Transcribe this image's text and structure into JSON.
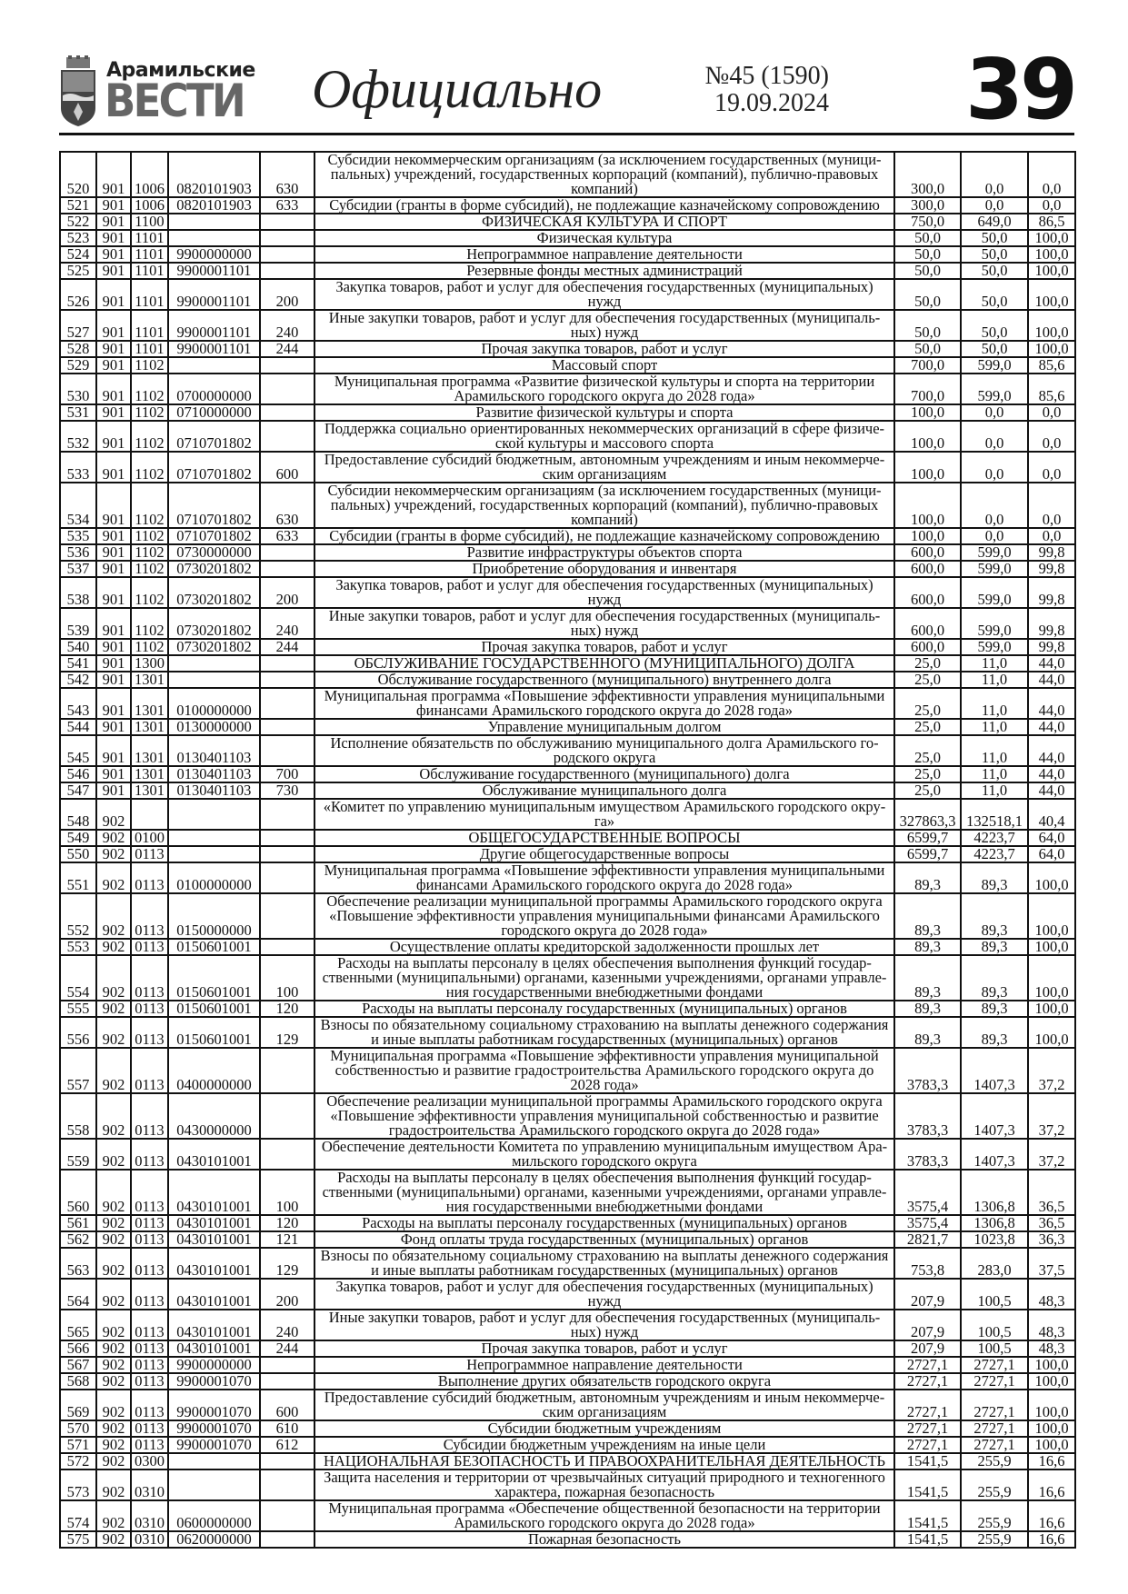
{
  "header": {
    "logo_top": "Арамильские",
    "logo_bottom": "ВЕСТИ",
    "section": "Официально",
    "issue": "№45 (1590)",
    "date": "19.09.2024",
    "page_number": "39"
  },
  "table": {
    "rows": [
      [
        "520",
        "901",
        "1006",
        "0820101903",
        "630",
        "Субсидии некоммерческим организациям (за исключением государственных (муници-\nпальных) учреждений, государственных корпораций (компаний), публично-правовых\nкомпаний)",
        "300,0",
        "0,0",
        "0,0"
      ],
      [
        "521",
        "901",
        "1006",
        "0820101903",
        "633",
        "Субсидии (гранты в форме субсидий), не подлежащие казначейскому сопровождению",
        "300,0",
        "0,0",
        "0,0"
      ],
      [
        "522",
        "901",
        "1100",
        "",
        "",
        "ФИЗИЧЕСКАЯ КУЛЬТУРА И СПОРТ",
        "750,0",
        "649,0",
        "86,5"
      ],
      [
        "523",
        "901",
        "1101",
        "",
        "",
        "Физическая культура",
        "50,0",
        "50,0",
        "100,0"
      ],
      [
        "524",
        "901",
        "1101",
        "9900000000",
        "",
        "Непрограммное направление деятельности",
        "50,0",
        "50,0",
        "100,0"
      ],
      [
        "525",
        "901",
        "1101",
        "9900001101",
        "",
        "Резервные фонды местных администраций",
        "50,0",
        "50,0",
        "100,0"
      ],
      [
        "526",
        "901",
        "1101",
        "9900001101",
        "200",
        "Закупка товаров, работ и услуг для обеспечения государственных (муниципальных)\nнужд",
        "50,0",
        "50,0",
        "100,0"
      ],
      [
        "527",
        "901",
        "1101",
        "9900001101",
        "240",
        "Иные закупки товаров, работ и услуг для обеспечения государственных (муниципаль-\nных) нужд",
        "50,0",
        "50,0",
        "100,0"
      ],
      [
        "528",
        "901",
        "1101",
        "9900001101",
        "244",
        "Прочая закупка товаров, работ и услуг",
        "50,0",
        "50,0",
        "100,0"
      ],
      [
        "529",
        "901",
        "1102",
        "",
        "",
        "Массовый спорт",
        "700,0",
        "599,0",
        "85,6"
      ],
      [
        "530",
        "901",
        "1102",
        "0700000000",
        "",
        "Муниципальная программа «Развитие физической культуры и спорта на территории\nАрамильского городского округа до 2028 года»",
        "700,0",
        "599,0",
        "85,6"
      ],
      [
        "531",
        "901",
        "1102",
        "0710000000",
        "",
        "Развитие физической культуры и спорта",
        "100,0",
        "0,0",
        "0,0"
      ],
      [
        "532",
        "901",
        "1102",
        "0710701802",
        "",
        "Поддержка социально ориентированных некоммерческих организаций в сфере физиче-\nской культуры и массового спорта",
        "100,0",
        "0,0",
        "0,0"
      ],
      [
        "533",
        "901",
        "1102",
        "0710701802",
        "600",
        "Предоставление субсидий бюджетным, автономным учреждениям и иным некоммерче-\nским организациям",
        "100,0",
        "0,0",
        "0,0"
      ],
      [
        "534",
        "901",
        "1102",
        "0710701802",
        "630",
        "Субсидии некоммерческим организациям (за исключением государственных (муници-\nпальных) учреждений, государственных корпораций (компаний), публично-правовых\nкомпаний)",
        "100,0",
        "0,0",
        "0,0"
      ],
      [
        "535",
        "901",
        "1102",
        "0710701802",
        "633",
        "Субсидии (гранты в форме субсидий), не подлежащие казначейскому сопровождению",
        "100,0",
        "0,0",
        "0,0"
      ],
      [
        "536",
        "901",
        "1102",
        "0730000000",
        "",
        "Развитие инфраструктуры объектов спорта",
        "600,0",
        "599,0",
        "99,8"
      ],
      [
        "537",
        "901",
        "1102",
        "0730201802",
        "",
        "Приобретение оборудования и инвентаря",
        "600,0",
        "599,0",
        "99,8"
      ],
      [
        "538",
        "901",
        "1102",
        "0730201802",
        "200",
        "Закупка товаров, работ и услуг для обеспечения государственных (муниципальных)\nнужд",
        "600,0",
        "599,0",
        "99,8"
      ],
      [
        "539",
        "901",
        "1102",
        "0730201802",
        "240",
        "Иные закупки товаров, работ и услуг для обеспечения государственных (муниципаль-\nных) нужд",
        "600,0",
        "599,0",
        "99,8"
      ],
      [
        "540",
        "901",
        "1102",
        "0730201802",
        "244",
        "Прочая закупка товаров, работ и услуг",
        "600,0",
        "599,0",
        "99,8"
      ],
      [
        "541",
        "901",
        "1300",
        "",
        "",
        "ОБСЛУЖИВАНИЕ ГОСУДАРСТВЕННОГО (МУНИЦИПАЛЬНОГО) ДОЛГА",
        "25,0",
        "11,0",
        "44,0"
      ],
      [
        "542",
        "901",
        "1301",
        "",
        "",
        "Обслуживание государственного (муниципального) внутреннего долга",
        "25,0",
        "11,0",
        "44,0"
      ],
      [
        "543",
        "901",
        "1301",
        "0100000000",
        "",
        "Муниципальная программа «Повышение эффективности управления муниципальными\nфинансами Арамильского городского округа до 2028 года»",
        "25,0",
        "11,0",
        "44,0"
      ],
      [
        "544",
        "901",
        "1301",
        "0130000000",
        "",
        "Управление муниципальным долгом",
        "25,0",
        "11,0",
        "44,0"
      ],
      [
        "545",
        "901",
        "1301",
        "0130401103",
        "",
        "Исполнение обязательств по обслуживанию муниципального долга Арамильского го-\nродского округа",
        "25,0",
        "11,0",
        "44,0"
      ],
      [
        "546",
        "901",
        "1301",
        "0130401103",
        "700",
        "Обслуживание государственного (муниципального) долга",
        "25,0",
        "11,0",
        "44,0"
      ],
      [
        "547",
        "901",
        "1301",
        "0130401103",
        "730",
        "Обслуживание муниципального долга",
        "25,0",
        "11,0",
        "44,0"
      ],
      [
        "548",
        "902",
        "",
        "",
        "",
        "«Комитет по управлению муниципальным имуществом Арамильского городского окру-\nга»",
        "327863,3",
        "132518,1",
        "40,4"
      ],
      [
        "549",
        "902",
        "0100",
        "",
        "",
        "ОБЩЕГОСУДАРСТВЕННЫЕ ВОПРОСЫ",
        "6599,7",
        "4223,7",
        "64,0"
      ],
      [
        "550",
        "902",
        "0113",
        "",
        "",
        "Другие общегосударственные вопросы",
        "6599,7",
        "4223,7",
        "64,0"
      ],
      [
        "551",
        "902",
        "0113",
        "0100000000",
        "",
        "Муниципальная программа «Повышение эффективности управления муниципальными\nфинансами Арамильского городского округа до 2028 года»",
        "89,3",
        "89,3",
        "100,0"
      ],
      [
        "552",
        "902",
        "0113",
        "0150000000",
        "",
        "Обеспечение реализации муниципальной программы Арамильского городского округа\n«Повышение эффективности управления муниципальными финансами Арамильского\nгородского округа до 2028 года»",
        "89,3",
        "89,3",
        "100,0"
      ],
      [
        "553",
        "902",
        "0113",
        "0150601001",
        "",
        "Осуществление оплаты кредиторской задолженности прошлых лет",
        "89,3",
        "89,3",
        "100,0"
      ],
      [
        "554",
        "902",
        "0113",
        "0150601001",
        "100",
        "Расходы на выплаты персоналу в целях обеспечения выполнения функций государ-\nственными (муниципальными) органами, казенными учреждениями, органами управле-\nния государственными внебюджетными фондами",
        "89,3",
        "89,3",
        "100,0"
      ],
      [
        "555",
        "902",
        "0113",
        "0150601001",
        "120",
        "Расходы на выплаты персоналу государственных (муниципальных) органов",
        "89,3",
        "89,3",
        "100,0"
      ],
      [
        "556",
        "902",
        "0113",
        "0150601001",
        "129",
        "Взносы по обязательному социальному страхованию на выплаты денежного содержания\nи иные выплаты работникам государственных (муниципальных) органов",
        "89,3",
        "89,3",
        "100,0"
      ],
      [
        "557",
        "902",
        "0113",
        "0400000000",
        "",
        "Муниципальная программа «Повышение эффективности управления муниципальной\nсобственностью и развитие градостроительства Арамильского городского округа до\n2028 года»",
        "3783,3",
        "1407,3",
        "37,2"
      ],
      [
        "558",
        "902",
        "0113",
        "0430000000",
        "",
        "Обеспечение реализации муниципальной программы Арамильского городского округа\n«Повышение эффективности управления муниципальной собственностью и развитие\nградостроительства Арамильского городского округа до 2028 года»",
        "3783,3",
        "1407,3",
        "37,2"
      ],
      [
        "559",
        "902",
        "0113",
        "0430101001",
        "",
        "Обеспечение деятельности Комитета по управлению муниципальным имуществом Ара-\nмильского городского округа",
        "3783,3",
        "1407,3",
        "37,2"
      ],
      [
        "560",
        "902",
        "0113",
        "0430101001",
        "100",
        "Расходы на выплаты персоналу в целях обеспечения выполнения функций государ-\nственными (муниципальными) органами, казенными учреждениями, органами управле-\nния государственными внебюджетными фондами",
        "3575,4",
        "1306,8",
        "36,5"
      ],
      [
        "561",
        "902",
        "0113",
        "0430101001",
        "120",
        "Расходы на выплаты персоналу государственных (муниципальных) органов",
        "3575,4",
        "1306,8",
        "36,5"
      ],
      [
        "562",
        "902",
        "0113",
        "0430101001",
        "121",
        "Фонд оплаты труда государственных (муниципальных) органов",
        "2821,7",
        "1023,8",
        "36,3"
      ],
      [
        "563",
        "902",
        "0113",
        "0430101001",
        "129",
        "Взносы по обязательному социальному страхованию на выплаты денежного содержания\nи иные выплаты работникам государственных (муниципальных) органов",
        "753,8",
        "283,0",
        "37,5"
      ],
      [
        "564",
        "902",
        "0113",
        "0430101001",
        "200",
        "Закупка товаров, работ и услуг для обеспечения государственных (муниципальных)\nнужд",
        "207,9",
        "100,5",
        "48,3"
      ],
      [
        "565",
        "902",
        "0113",
        "0430101001",
        "240",
        "Иные закупки товаров, работ и услуг для обеспечения государственных (муниципаль-\nных) нужд",
        "207,9",
        "100,5",
        "48,3"
      ],
      [
        "566",
        "902",
        "0113",
        "0430101001",
        "244",
        "Прочая закупка товаров, работ и услуг",
        "207,9",
        "100,5",
        "48,3"
      ],
      [
        "567",
        "902",
        "0113",
        "9900000000",
        "",
        "Непрограммное направление деятельности",
        "2727,1",
        "2727,1",
        "100,0"
      ],
      [
        "568",
        "902",
        "0113",
        "9900001070",
        "",
        "Выполнение других обязательств городского округа",
        "2727,1",
        "2727,1",
        "100,0"
      ],
      [
        "569",
        "902",
        "0113",
        "9900001070",
        "600",
        "Предоставление субсидий бюджетным, автономным учреждениям и иным некоммерче-\nским организациям",
        "2727,1",
        "2727,1",
        "100,0"
      ],
      [
        "570",
        "902",
        "0113",
        "9900001070",
        "610",
        "Субсидии бюджетным учреждениям",
        "2727,1",
        "2727,1",
        "100,0"
      ],
      [
        "571",
        "902",
        "0113",
        "9900001070",
        "612",
        "Субсидии бюджетным учреждениям на иные цели",
        "2727,1",
        "2727,1",
        "100,0"
      ],
      [
        "572",
        "902",
        "0300",
        "",
        "",
        "НАЦИОНАЛЬНАЯ БЕЗОПАСНОСТЬ И ПРАВООХРАНИТЕЛЬНАЯ ДЕЯТЕЛЬНОСТЬ",
        "1541,5",
        "255,9",
        "16,6"
      ],
      [
        "573",
        "902",
        "0310",
        "",
        "",
        "Защита населения и территории от чрезвычайных ситуаций природного и техногенного\nхарактера, пожарная безопасность",
        "1541,5",
        "255,9",
        "16,6"
      ],
      [
        "574",
        "902",
        "0310",
        "0600000000",
        "",
        "Муниципальная программа «Обеспечение общественной безопасности на территории\nАрамильского городского округа до 2028 года»",
        "1541,5",
        "255,9",
        "16,6"
      ],
      [
        "575",
        "902",
        "0310",
        "0620000000",
        "",
        "Пожарная безопасность",
        "1541,5",
        "255,9",
        "16,6"
      ]
    ]
  }
}
